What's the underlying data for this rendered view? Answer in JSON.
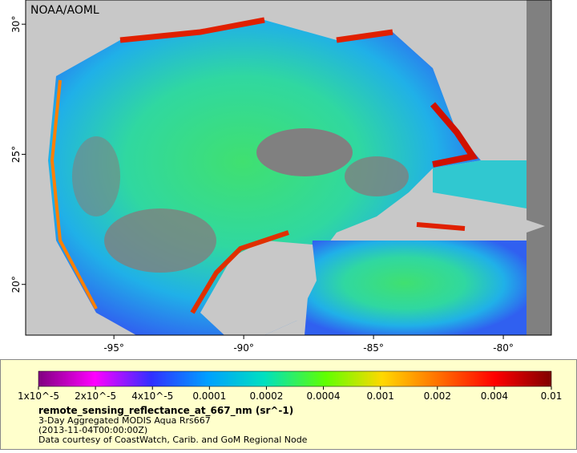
{
  "map": {
    "credit": "NOAA/AOML",
    "xlim": [
      -98.4,
      -78.15
    ],
    "ylim": [
      18.05,
      30.93
    ],
    "lon_ticks": [
      {
        "value": -95,
        "label": "-95°"
      },
      {
        "value": -90,
        "label": "-90°"
      },
      {
        "value": -85,
        "label": "-85°"
      },
      {
        "value": -80,
        "label": "-80°"
      }
    ],
    "lat_ticks": [
      {
        "value": 20,
        "label": "20°"
      },
      {
        "value": 25,
        "label": "25°"
      },
      {
        "value": 30,
        "label": "30°"
      }
    ]
  },
  "colorbar": {
    "ticks": [
      {
        "value": 1e-05,
        "label": "1x10^-5"
      },
      {
        "value": 2e-05,
        "label": "2x10^-5"
      },
      {
        "value": 4e-05,
        "label": "4x10^-5"
      },
      0.0001,
      0.0002,
      0.0004,
      0.001,
      0.002,
      0.004,
      0.01
    ],
    "variable": "remote_sensing_reflectance_at_667_nm (sr^-1)",
    "description": "3-Day Aggregated MODIS Aqua Rrs667",
    "time": "(2013-11-04T00:00:00Z)",
    "source": "Data courtesy of CoastWatch, Carib. and GoM Regional Node"
  }
}
